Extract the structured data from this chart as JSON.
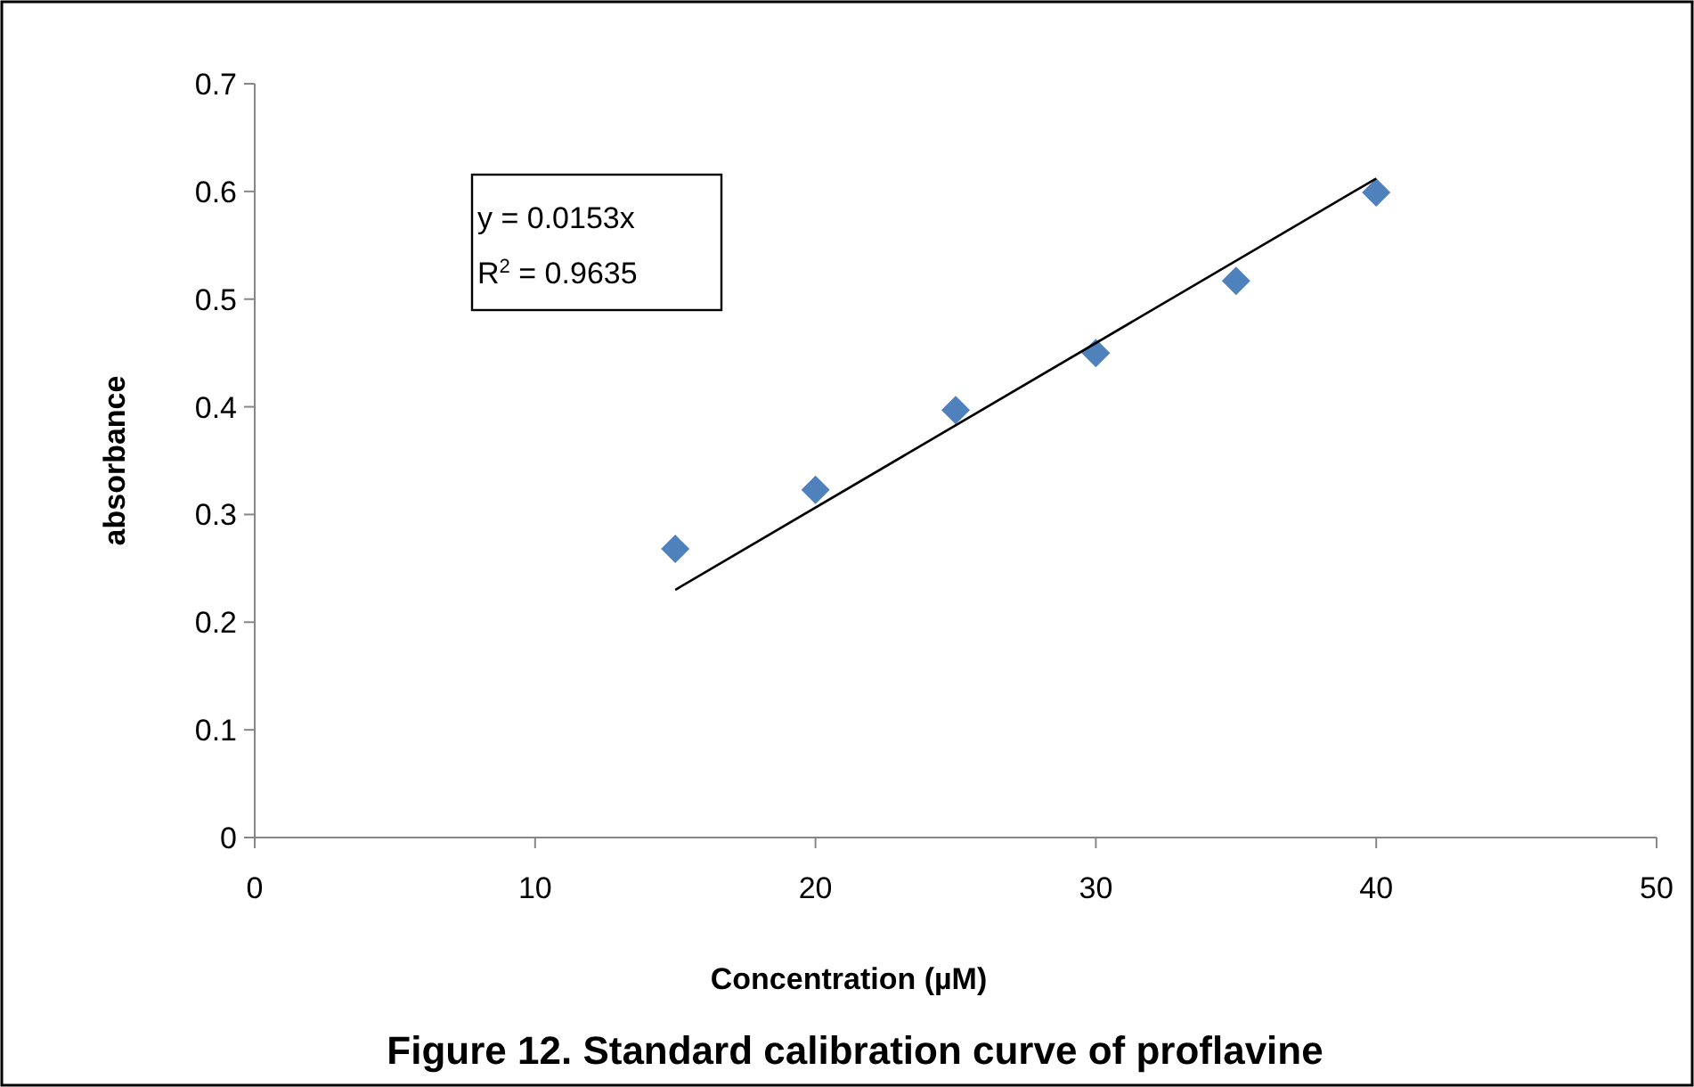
{
  "chart_data": {
    "type": "scatter",
    "title": "Figure 12. Standard calibration curve of proflavine",
    "xlabel": "Concentration (µM)",
    "ylabel": "absorbance",
    "x": [
      15,
      20,
      25,
      30,
      35,
      40
    ],
    "series": [
      {
        "color": "#4f81bd",
        "marker": "diamond",
        "values": [
          0.268,
          0.323,
          0.397,
          0.45,
          0.517,
          0.599
        ]
      },
      {
        "type": "line",
        "color": "#000000",
        "marker": "none",
        "x": [
          15,
          40
        ],
        "values": [
          0.23,
          0.612
        ]
      }
    ],
    "annotations": [
      "y = 0.0153x",
      "R$^{2}$ = 0.9635"
    ],
    "xlim": [
      0,
      50
    ],
    "xticks": [
      0,
      10,
      20,
      30,
      40,
      50
    ],
    "ylim": [
      0,
      0.7
    ],
    "yticks": [
      0,
      0.1,
      0.2,
      0.3,
      0.4,
      0.5,
      0.6,
      0.7
    ],
    "grid": false
  }
}
